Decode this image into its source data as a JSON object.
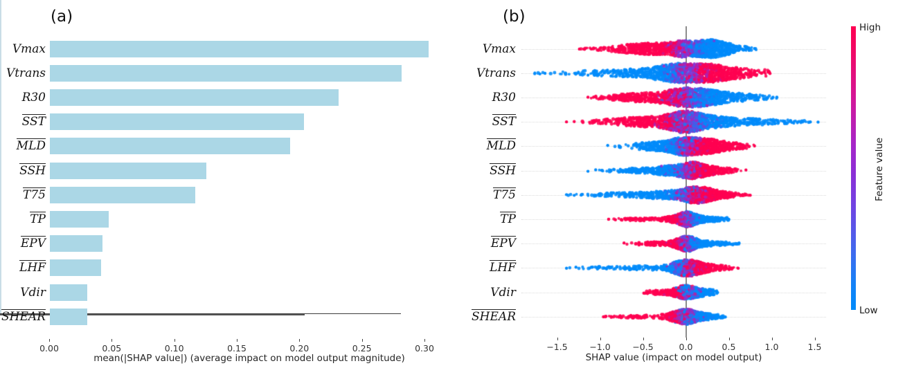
{
  "figure": {
    "panel_a": {
      "title": "(a)",
      "xlabel": "mean(|SHAP value|) (average impact on model output magnitude)",
      "tick_labels": [
        "0.00",
        "0.05",
        "0.10",
        "0.15",
        "0.20",
        "0.25",
        "0.30"
      ],
      "tick_values": [
        0,
        0.05,
        0.1,
        0.15,
        0.2,
        0.25,
        0.3
      ],
      "bar_color": "#abd7e6"
    },
    "panel_b": {
      "title": "(b)",
      "xlabel": "SHAP value (impact on model output)",
      "tick_labels": [
        "−1.5",
        "−1.0",
        "−0.5",
        "0.0",
        "0.5",
        "1.0",
        "1.5"
      ],
      "tick_values": [
        -1.5,
        -1.0,
        -0.5,
        0.0,
        0.5,
        1.0,
        1.5
      ]
    },
    "colorbar": {
      "high_label": "High",
      "low_label": "Low",
      "axis_label": "Feature value",
      "high_color": "#ff0051",
      "mid_color": "#8b2fd6",
      "low_color": "#008bfb"
    }
  },
  "features": [
    {
      "label": "Vmax",
      "overline": false
    },
    {
      "label": "Vtrans",
      "overline": false
    },
    {
      "label": "R30",
      "overline": false
    },
    {
      "label": "SST",
      "overline": true
    },
    {
      "label": "MLD",
      "overline": true
    },
    {
      "label": "SSH",
      "overline": true
    },
    {
      "label": "T75",
      "overline": true
    },
    {
      "label": "TP",
      "overline": true
    },
    {
      "label": "EPV",
      "overline": true
    },
    {
      "label": "LHF",
      "overline": true
    },
    {
      "label": "Vdir",
      "overline": false
    },
    {
      "label": "SHEAR",
      "overline": true
    }
  ],
  "chart_data": [
    {
      "type": "bar",
      "title": "(a)",
      "categories": [
        "Vmax",
        "Vtrans",
        "R30",
        "SST",
        "MLD",
        "SSH",
        "T75",
        "TP",
        "EPV",
        "LHF",
        "Vdir",
        "SHEAR"
      ],
      "values": [
        0.303,
        0.281,
        0.231,
        0.203,
        0.192,
        0.125,
        0.116,
        0.047,
        0.042,
        0.041,
        0.03,
        0.03
      ],
      "xlabel": "mean(|SHAP value|) (average impact on model output magnitude)",
      "xlim": [
        0,
        0.32
      ],
      "bar_color": "#abd7e6",
      "legend": "none",
      "grid": false
    },
    {
      "type": "beeswarm",
      "title": "(b)",
      "xlabel": "SHAP value (impact on model output)",
      "xlim": [
        -1.9,
        1.75
      ],
      "x_ticks": [
        -1.5,
        -1.0,
        -0.5,
        0.0,
        0.5,
        1.0,
        1.5
      ],
      "colormap": {
        "low": "#008bfb",
        "mid": "#8b2fd6",
        "high": "#ff0051"
      },
      "features": [
        {
          "name": "Vmax",
          "range": [
            -1.24,
            0.82
          ],
          "high_corr": "negative",
          "slope": 3.0,
          "noise": 0.27,
          "amp": 13,
          "n": 1300,
          "components": [
            [
              -0.38,
              0.3,
              0.4
            ],
            [
              -0.05,
              0.1,
              0.15
            ],
            [
              0.28,
              0.15,
              0.4
            ],
            [
              0.55,
              0.18,
              0.05
            ]
          ],
          "outliers": [
            -1.24,
            -1.18,
            0.8
          ]
        },
        {
          "name": "Vtrans",
          "range": [
            -1.76,
            0.98
          ],
          "high_corr": "positive",
          "slope": 2.2,
          "noise": 0.27,
          "amp": 14,
          "n": 1300,
          "components": [
            [
              -0.55,
              0.45,
              0.22
            ],
            [
              -0.12,
              0.18,
              0.3
            ],
            [
              0.25,
              0.2,
              0.36
            ],
            [
              0.6,
              0.18,
              0.1
            ],
            [
              0.95,
              0.05,
              0.02
            ]
          ],
          "outliers": [
            -1.76,
            -1.7,
            -1.64,
            0.98
          ]
        },
        {
          "name": "R30",
          "range": [
            -1.14,
            1.06
          ],
          "high_corr": "negative",
          "slope": 2.6,
          "noise": 0.3,
          "amp": 14,
          "n": 1300,
          "components": [
            [
              -0.45,
              0.3,
              0.25
            ],
            [
              -0.05,
              0.15,
              0.25
            ],
            [
              0.18,
              0.18,
              0.35
            ],
            [
              0.55,
              0.25,
              0.15
            ]
          ],
          "outliers": [
            -1.14,
            -1.05,
            0.95,
            1.06
          ]
        },
        {
          "name": "SST",
          "range": [
            -1.39,
            1.54
          ],
          "high_corr": "negative",
          "slope": 2.2,
          "noise": 0.3,
          "amp": 16,
          "n": 1400,
          "components": [
            [
              -0.45,
              0.3,
              0.25
            ],
            [
              0.0,
              0.15,
              0.45
            ],
            [
              0.3,
              0.25,
              0.2
            ],
            [
              0.8,
              0.35,
              0.1
            ]
          ],
          "outliers": [
            -1.39,
            -1.3,
            1.35,
            1.45,
            1.54
          ]
        },
        {
          "name": "MLD",
          "range": [
            -0.91,
            0.8
          ],
          "high_corr": "positive",
          "slope": 3.2,
          "noise": 0.3,
          "amp": 13,
          "n": 1200,
          "components": [
            [
              -0.35,
              0.2,
              0.18
            ],
            [
              -0.05,
              0.12,
              0.3
            ],
            [
              0.18,
              0.15,
              0.37
            ],
            [
              0.45,
              0.18,
              0.15
            ]
          ],
          "outliers": [
            -0.91,
            0.8
          ]
        },
        {
          "name": "SSH",
          "range": [
            -1.14,
            0.7
          ],
          "high_corr": "positive",
          "slope": 3.4,
          "noise": 0.3,
          "amp": 12,
          "n": 1100,
          "components": [
            [
              -0.5,
              0.25,
              0.15
            ],
            [
              -0.15,
              0.15,
              0.25
            ],
            [
              0.08,
              0.1,
              0.4
            ],
            [
              0.3,
              0.15,
              0.2
            ]
          ],
          "outliers": [
            -1.14,
            -1.05,
            -0.98,
            0.7
          ]
        },
        {
          "name": "T75",
          "range": [
            -1.39,
            0.75
          ],
          "high_corr": "positive",
          "slope": 3.0,
          "noise": 0.3,
          "amp": 12,
          "n": 1100,
          "components": [
            [
              -0.7,
              0.3,
              0.12
            ],
            [
              -0.2,
              0.2,
              0.23
            ],
            [
              0.12,
              0.12,
              0.45
            ],
            [
              0.35,
              0.15,
              0.2
            ]
          ],
          "outliers": [
            -1.39,
            -1.3,
            -1.22,
            0.75
          ]
        },
        {
          "name": "TP",
          "range": [
            -0.9,
            0.5
          ],
          "high_corr": "negative",
          "slope": 4.5,
          "noise": 0.3,
          "amp": 11,
          "n": 900,
          "components": [
            [
              -0.45,
              0.25,
              0.12
            ],
            [
              -0.1,
              0.1,
              0.18
            ],
            [
              0.02,
              0.07,
              0.5
            ],
            [
              0.18,
              0.1,
              0.15
            ],
            [
              0.4,
              0.08,
              0.05
            ]
          ],
          "outliers": [
            -0.9,
            -0.82,
            0.5
          ]
        },
        {
          "name": "EPV",
          "range": [
            -0.72,
            0.62
          ],
          "high_corr": "negative",
          "slope": 4.5,
          "noise": 0.3,
          "amp": 11,
          "n": 900,
          "components": [
            [
              -0.3,
              0.18,
              0.15
            ],
            [
              -0.05,
              0.08,
              0.25
            ],
            [
              0.03,
              0.07,
              0.4
            ],
            [
              0.18,
              0.12,
              0.15
            ],
            [
              0.45,
              0.12,
              0.05
            ]
          ],
          "outliers": [
            -0.72,
            0.62
          ]
        },
        {
          "name": "LHF",
          "range": [
            -1.39,
            0.61
          ],
          "high_corr": "positive",
          "slope": 3.5,
          "noise": 0.35,
          "amp": 12,
          "n": 900,
          "components": [
            [
              -1.0,
              0.3,
              0.05
            ],
            [
              -0.4,
              0.25,
              0.12
            ],
            [
              -0.05,
              0.1,
              0.33
            ],
            [
              0.08,
              0.1,
              0.35
            ],
            [
              0.3,
              0.15,
              0.15
            ]
          ],
          "outliers": [
            -1.39,
            -1.28,
            -1.1,
            -1.02,
            -0.95,
            0.61
          ]
        },
        {
          "name": "Vdir",
          "range": [
            -0.49,
            0.37
          ],
          "high_corr": "negative",
          "slope": 4.5,
          "noise": 0.45,
          "amp": 10,
          "n": 800,
          "components": [
            [
              -0.3,
              0.12,
              0.12
            ],
            [
              -0.05,
              0.08,
              0.35
            ],
            [
              0.05,
              0.08,
              0.35
            ],
            [
              0.22,
              0.1,
              0.18
            ]
          ],
          "outliers": [
            -0.49,
            0.37
          ]
        },
        {
          "name": "SHEAR",
          "range": [
            -0.96,
            0.46
          ],
          "high_corr": "negative",
          "slope": 4.0,
          "noise": 0.4,
          "amp": 11,
          "n": 800,
          "components": [
            [
              -0.55,
              0.2,
              0.08
            ],
            [
              -0.1,
              0.1,
              0.3
            ],
            [
              0.02,
              0.08,
              0.42
            ],
            [
              0.22,
              0.12,
              0.2
            ]
          ],
          "outliers": [
            -0.96,
            -0.93,
            -0.77,
            0.46
          ]
        }
      ]
    }
  ]
}
